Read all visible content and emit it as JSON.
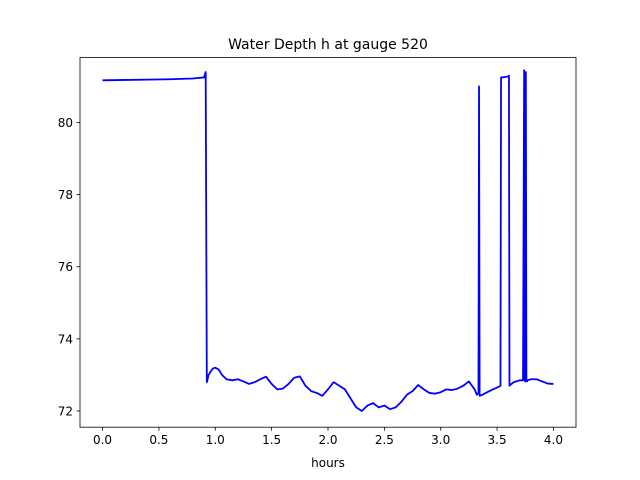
{
  "chart_data": {
    "type": "line",
    "title": "Water Depth h at gauge 520",
    "xlabel": "hours",
    "ylabel": "",
    "xlim": [
      -0.2,
      4.2
    ],
    "ylim": [
      71.55,
      81.8
    ],
    "xticks": [
      0.0,
      0.5,
      1.0,
      1.5,
      2.0,
      2.5,
      3.0,
      3.5,
      4.0
    ],
    "xtick_labels": [
      "0.0",
      "0.5",
      "1.0",
      "1.5",
      "2.0",
      "2.5",
      "3.0",
      "3.5",
      "4.0"
    ],
    "yticks": [
      72,
      74,
      76,
      78,
      80
    ],
    "ytick_labels": [
      "72",
      "74",
      "76",
      "78",
      "80"
    ],
    "grid": false,
    "series": [
      {
        "color": "#0000ff",
        "x": [
          0.0,
          0.2,
          0.4,
          0.6,
          0.8,
          0.9,
          0.915,
          0.925,
          0.93,
          0.94,
          0.96,
          0.98,
          1.0,
          1.03,
          1.06,
          1.1,
          1.15,
          1.2,
          1.25,
          1.3,
          1.35,
          1.4,
          1.45,
          1.5,
          1.55,
          1.6,
          1.65,
          1.7,
          1.75,
          1.8,
          1.85,
          1.9,
          1.95,
          2.0,
          2.05,
          2.1,
          2.15,
          2.2,
          2.25,
          2.3,
          2.35,
          2.4,
          2.45,
          2.5,
          2.55,
          2.6,
          2.65,
          2.7,
          2.75,
          2.8,
          2.85,
          2.9,
          2.95,
          3.0,
          3.05,
          3.1,
          3.15,
          3.2,
          3.25,
          3.3,
          3.32,
          3.335,
          3.34,
          3.345,
          3.37,
          3.4,
          3.45,
          3.5,
          3.52,
          3.53,
          3.535,
          3.55,
          3.58,
          3.6,
          3.605,
          3.61,
          3.615,
          3.65,
          3.7,
          3.73,
          3.74,
          3.745,
          3.75,
          3.755,
          3.76,
          3.765,
          3.77,
          3.8,
          3.85,
          3.9,
          3.95,
          4.0
        ],
        "y": [
          81.17,
          81.18,
          81.19,
          81.2,
          81.22,
          81.25,
          81.4,
          72.8,
          72.85,
          73.0,
          73.1,
          73.18,
          73.2,
          73.15,
          73.0,
          72.88,
          72.85,
          72.88,
          72.82,
          72.75,
          72.8,
          72.88,
          72.95,
          72.75,
          72.6,
          72.62,
          72.75,
          72.92,
          72.96,
          72.7,
          72.55,
          72.5,
          72.42,
          72.6,
          72.8,
          72.7,
          72.6,
          72.35,
          72.1,
          72.0,
          72.15,
          72.22,
          72.1,
          72.15,
          72.05,
          72.1,
          72.25,
          72.45,
          72.55,
          72.72,
          72.6,
          72.5,
          72.48,
          72.52,
          72.6,
          72.58,
          72.62,
          72.7,
          72.82,
          72.6,
          72.45,
          72.5,
          81.0,
          72.42,
          72.45,
          72.5,
          72.58,
          72.65,
          72.68,
          72.7,
          81.25,
          81.25,
          81.27,
          81.28,
          81.3,
          72.7,
          72.72,
          72.8,
          72.85,
          72.85,
          81.45,
          72.85,
          72.82,
          81.4,
          72.85,
          72.82,
          72.85,
          72.88,
          72.88,
          72.82,
          72.76,
          72.75
        ]
      }
    ]
  }
}
